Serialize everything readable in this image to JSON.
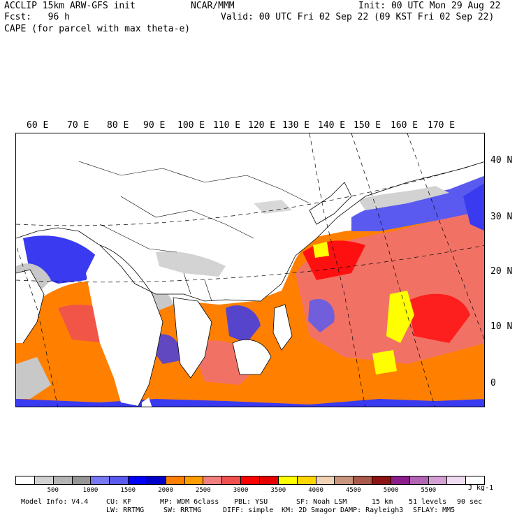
{
  "header": {
    "line1_left": "ACCLIP 15km ARW-GFS init",
    "line1_center": "NCAR/MMM",
    "line1_right": "Init: 00 UTC Mon 29 Aug 22",
    "line2_left": "Fcst:   96 h",
    "line2_right": "Valid: 00 UTC Fri 02 Sep 22 (09 KST Fri 02 Sep 22)",
    "line3_left": "CAPE (for parcel with max theta-e)"
  },
  "map": {
    "lon_labels": [
      "60 E",
      "70 E",
      "80 E",
      "90 E",
      "100 E",
      "110 E",
      "120 E",
      "130 E",
      "140 E",
      "150 E",
      "160 E",
      "170 E"
    ],
    "lat_labels": [
      "40 N",
      "30 N",
      "20 N",
      "10 N",
      "0"
    ],
    "colors": {
      "land_low": "#ffffff",
      "blue": "#3a3af0",
      "light_blue": "#7a7af0",
      "orange": "#ff8000",
      "salmon": "#f06a6a",
      "red": "#ff1010",
      "yellow": "#ffff00",
      "gray": "#c8c8c8"
    }
  },
  "colorbar": {
    "swatches": [
      "#ffffff",
      "#d2d2d2",
      "#b4b4b4",
      "#969696",
      "#7878f0",
      "#5a5af0",
      "#0000ff",
      "#0000c8",
      "#ff8000",
      "#ff9d00",
      "#f08080",
      "#f05050",
      "#ff0000",
      "#e60000",
      "#ffff00",
      "#ffd700",
      "#f0d2b4",
      "#c8967d",
      "#aa5a4b",
      "#8c1414",
      "#8c1e8c",
      "#b464b4",
      "#d2a0d2",
      "#f0dcf0",
      "#ffffff"
    ],
    "labels": [
      "500",
      "1000",
      "1500",
      "2000",
      "2500",
      "3000",
      "3500",
      "4000",
      "4500",
      "5000",
      "5500"
    ],
    "units": "J kg-1"
  },
  "footer": {
    "line1": [
      {
        "text": "Model Info: V4.4"
      },
      {
        "text": "CU: KF"
      },
      {
        "text": "MP: WDM 6class"
      },
      {
        "text": "PBL: YSU"
      },
      {
        "text": "SF: Noah LSM"
      },
      {
        "text": "15 km"
      },
      {
        "text": "51 levels"
      },
      {
        "text": "90 sec"
      }
    ],
    "line2": [
      {
        "text": "LW: RRTMG"
      },
      {
        "text": "SW: RRTMG"
      },
      {
        "text": "DIFF: simple"
      },
      {
        "text": "KM: 2D Smagor"
      },
      {
        "text": "DAMP: Rayleigh3"
      },
      {
        "text": "SFLAY: MM5"
      }
    ]
  }
}
